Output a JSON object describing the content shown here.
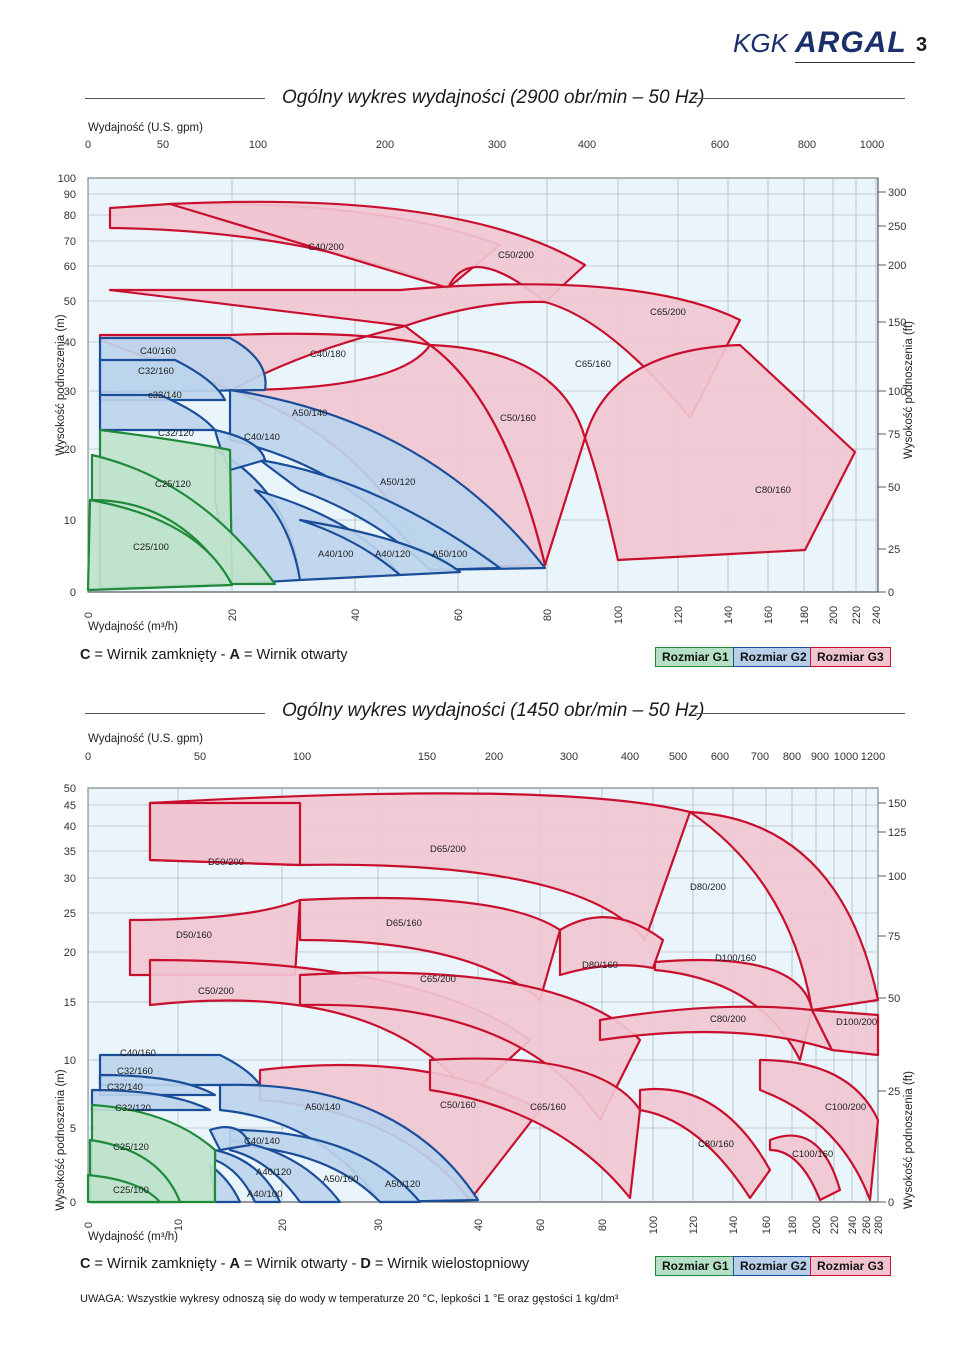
{
  "header": {
    "brand": "KGK",
    "logo": "ARGAL",
    "page_number": "3"
  },
  "charts": [
    {
      "title": "Ogólny wykres wydajności (2900 obr/min – 50 Hz)",
      "top_axis_label": "Wydajność  (U.S. gpm)",
      "top_ticks": [
        "0",
        "50",
        "100",
        "200",
        "300",
        "400",
        "600",
        "800",
        "1000"
      ],
      "bottom_axis_label": "Wydajność  (m³/h)",
      "left_axis_label": "Wysokość podnoszenia (m)",
      "right_axis_label": "Wysokość podnoszenia (ft)",
      "legend": {
        "c_key": "C",
        "c_text": " = Wirnik zamknięty - ",
        "a_key": "A",
        "a_text": " = Wirnik otwarty",
        "d_key": "",
        "d_text": ""
      },
      "badges": [
        "Rozmiar G1",
        "Rozmiar G2",
        "Rozmiar G3"
      ]
    },
    {
      "title": "Ogólny wykres wydajności (1450 obr/min – 50 Hz)",
      "top_axis_label": "Wydajność  (U.S. gpm)",
      "top_ticks": [
        "0",
        "50",
        "100",
        "150",
        "200",
        "300",
        "400",
        "500",
        "600",
        "700",
        "800",
        "900",
        "1000",
        "1200"
      ],
      "bottom_axis_label": "Wydajność  (m³/h)",
      "left_axis_label": "Wysokość podnoszenia (m)",
      "right_axis_label": "Wysokość podnoszenia (ft)",
      "legend": {
        "c_key": "C",
        "c_text": " = Wirnik zamknięty - ",
        "a_key": "A",
        "a_text": " = Wirnik otwarty  - ",
        "d_key": "D",
        "d_text": " = Wirnik wielostopniowy"
      },
      "badges": [
        "Rozmiar G1",
        "Rozmiar G2",
        "Rozmiar G3"
      ]
    }
  ],
  "note": "UWAGA: Wszystkie wykresy odnoszą się do wody w temperaturze 20 °C, lepkości 1 °E oraz gęstości 1 kg/dm³",
  "colors": {
    "g1_fill": "#bfe3cc",
    "g1_line": "#1e8a3a",
    "g2_fill": "#bcd4ec",
    "g2_line": "#1b4e9a",
    "g3_fill": "#f0c6d1",
    "g3_line": "#c8102e",
    "plot_bg": "#eaf4fb"
  },
  "chart_data": [
    {
      "type": "area",
      "x_scale": "log",
      "x_unit": "m³/h",
      "y_unit": "m",
      "x_ticks": [
        "0",
        "20",
        "40",
        "60",
        "80",
        "100",
        "120",
        "140",
        "160",
        "180",
        "200",
        "220",
        "240"
      ],
      "y_ticks_m": [
        "0",
        "10",
        "20",
        "30",
        "40",
        "50",
        "60",
        "70",
        "80",
        "90",
        "100"
      ],
      "y_ticks_ft": [
        "0",
        "25",
        "50",
        "75",
        "100",
        "150",
        "200",
        "250",
        "300"
      ],
      "series": [
        {
          "name": "C25/100",
          "group": "G1",
          "shut_off_head": 12,
          "max_flow": 21
        },
        {
          "name": "C25/120",
          "group": "G1",
          "shut_off_head": 15,
          "max_flow": 27
        },
        {
          "name": "C32/120",
          "group": "G1",
          "shut_off_head": 21,
          "max_flow": 30
        },
        {
          "name": "c32/140",
          "group": "G2",
          "shut_off_head": 27,
          "max_flow": 36
        },
        {
          "name": "C32/160",
          "group": "G2",
          "shut_off_head": 32,
          "max_flow": 42
        },
        {
          "name": "C40/160",
          "group": "G2",
          "shut_off_head": 37,
          "max_flow": 50
        },
        {
          "name": "C40/140",
          "group": "G2",
          "shut_off_head": 22,
          "max_flow": 40
        },
        {
          "name": "A40/100",
          "group": "G2",
          "shut_off_head": 15,
          "max_flow": 45
        },
        {
          "name": "A40/120",
          "group": "G2",
          "shut_off_head": 18,
          "max_flow": 55
        },
        {
          "name": "A50/100",
          "group": "G2",
          "shut_off_head": 14,
          "max_flow": 65
        },
        {
          "name": "A50/120",
          "group": "G2",
          "shut_off_head": 20,
          "max_flow": 70
        },
        {
          "name": "A50/140",
          "group": "G2",
          "shut_off_head": 24,
          "max_flow": 80
        },
        {
          "name": "C40/180",
          "group": "G3",
          "shut_off_head": 52,
          "max_flow": 60
        },
        {
          "name": "C40/200",
          "group": "G3",
          "shut_off_head": 86,
          "max_flow": 72
        },
        {
          "name": "C50/160",
          "group": "G3",
          "shut_off_head": 37,
          "max_flow": 100
        },
        {
          "name": "C50/200",
          "group": "G3",
          "shut_off_head": 88,
          "max_flow": 110
        },
        {
          "name": "C65/160",
          "group": "G3",
          "shut_off_head": 40,
          "max_flow": 150
        },
        {
          "name": "C65/200",
          "group": "G3",
          "shut_off_head": 54,
          "max_flow": 190
        },
        {
          "name": "C80/160",
          "group": "G3",
          "shut_off_head": 37,
          "max_flow": 230
        }
      ]
    },
    {
      "type": "area",
      "x_scale": "log",
      "x_unit": "m³/h",
      "y_unit": "m",
      "x_ticks": [
        "0",
        "10",
        "20",
        "30",
        "40",
        "60",
        "80",
        "100",
        "120",
        "140",
        "160",
        "180",
        "200",
        "220",
        "240",
        "260",
        "280"
      ],
      "y_ticks_m": [
        "0",
        "5",
        "10",
        "15",
        "20",
        "25",
        "30",
        "35",
        "40",
        "45",
        "50"
      ],
      "y_ticks_ft": [
        "0",
        "25",
        "50",
        "75",
        "100",
        "125",
        "150"
      ],
      "series": [
        {
          "name": "C25/100",
          "group": "G1",
          "shut_off_head": 3,
          "max_flow": 10
        },
        {
          "name": "C25/120",
          "group": "G1",
          "shut_off_head": 4.5,
          "max_flow": 12
        },
        {
          "name": "C32/120",
          "group": "G1",
          "shut_off_head": 6,
          "max_flow": 14
        },
        {
          "name": "C32/140",
          "group": "G2",
          "shut_off_head": 8,
          "max_flow": 17
        },
        {
          "name": "C32/160",
          "group": "G2",
          "shut_off_head": 9,
          "max_flow": 20
        },
        {
          "name": "C40/160",
          "group": "G2",
          "shut_off_head": 10,
          "max_flow": 24
        },
        {
          "name": "C40/140",
          "group": "G2",
          "shut_off_head": 5,
          "max_flow": 25
        },
        {
          "name": "A40/100",
          "group": "G2",
          "shut_off_head": 3,
          "max_flow": 22
        },
        {
          "name": "A40/120",
          "group": "G2",
          "shut_off_head": 4,
          "max_flow": 26
        },
        {
          "name": "A50/100",
          "group": "G2",
          "shut_off_head": 3,
          "max_flow": 30
        },
        {
          "name": "A50/120",
          "group": "G2",
          "shut_off_head": 4,
          "max_flow": 38
        },
        {
          "name": "A50/140",
          "group": "G2",
          "shut_off_head": 6,
          "max_flow": 42
        },
        {
          "name": "C50/200",
          "group": "G3",
          "shut_off_head": 17,
          "max_flow": 55
        },
        {
          "name": "D50/160",
          "group": "G3",
          "shut_off_head": 22,
          "max_flow": 30
        },
        {
          "name": "D50/200",
          "group": "G3",
          "shut_off_head": 43,
          "max_flow": 40
        },
        {
          "name": "D65/160",
          "group": "G3",
          "shut_off_head": 24,
          "max_flow": 60
        },
        {
          "name": "D65/200",
          "group": "G3",
          "shut_off_head": 44,
          "max_flow": 80
        },
        {
          "name": "C50/160",
          "group": "G3",
          "shut_off_head": 9,
          "max_flow": 55
        },
        {
          "name": "C65/160",
          "group": "G3",
          "shut_off_head": 9,
          "max_flow": 100
        },
        {
          "name": "C65/200",
          "group": "G3",
          "shut_off_head": 16,
          "max_flow": 95
        },
        {
          "name": "D80/160",
          "group": "G3",
          "shut_off_head": 22,
          "max_flow": 130
        },
        {
          "name": "D80/200",
          "group": "G3",
          "shut_off_head": 38,
          "max_flow": 160
        },
        {
          "name": "C80/160",
          "group": "G3",
          "shut_off_head": 7,
          "max_flow": 150
        },
        {
          "name": "C80/200",
          "group": "G3",
          "shut_off_head": 14,
          "max_flow": 200
        },
        {
          "name": "D100/160",
          "group": "G3",
          "shut_off_head": 20,
          "max_flow": 230
        },
        {
          "name": "D100/200",
          "group": "G3",
          "shut_off_head": 13,
          "max_flow": 270
        },
        {
          "name": "C100/160",
          "group": "G3",
          "shut_off_head": 6,
          "max_flow": 250
        },
        {
          "name": "C100/200",
          "group": "G3",
          "shut_off_head": 10,
          "max_flow": 280
        }
      ]
    }
  ]
}
